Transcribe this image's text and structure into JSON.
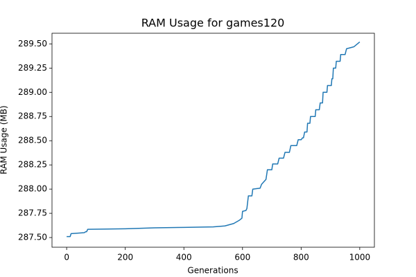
{
  "chart_data": {
    "type": "line",
    "title": "RAM Usage for games120",
    "xlabel": "Generations",
    "ylabel": "RAM Usage (MB)",
    "x": [
      0,
      12,
      15,
      60,
      65,
      68,
      72,
      200,
      300,
      400,
      500,
      540,
      570,
      590,
      598,
      600,
      612,
      615,
      620,
      632,
      635,
      660,
      665,
      680,
      685,
      700,
      703,
      720,
      725,
      740,
      745,
      760,
      765,
      785,
      790,
      800,
      805,
      808,
      812,
      820,
      822,
      830,
      832,
      848,
      850,
      862,
      865,
      873,
      875,
      888,
      890,
      903,
      905,
      908,
      910,
      918,
      920,
      933,
      935,
      950,
      955,
      980,
      1000
    ],
    "values": [
      287.51,
      287.51,
      287.54,
      287.55,
      287.56,
      287.56,
      287.585,
      287.59,
      287.6,
      287.605,
      287.61,
      287.62,
      287.645,
      287.68,
      287.7,
      287.77,
      287.78,
      287.8,
      287.93,
      287.93,
      288.0,
      288.01,
      288.05,
      288.1,
      288.2,
      288.2,
      288.26,
      288.26,
      288.32,
      288.32,
      288.38,
      288.38,
      288.45,
      288.45,
      288.51,
      288.51,
      288.53,
      288.53,
      288.59,
      288.59,
      288.68,
      288.68,
      288.75,
      288.75,
      288.82,
      288.82,
      288.89,
      288.89,
      289.0,
      289.0,
      289.07,
      289.07,
      289.14,
      289.14,
      289.25,
      289.25,
      289.32,
      289.32,
      289.39,
      289.39,
      289.45,
      289.47,
      289.52
    ],
    "color": "#1f77b4",
    "xlim": [
      -50,
      1050
    ],
    "xticks": [
      0,
      200,
      400,
      600,
      800,
      1000
    ],
    "ylim": [
      287.4,
      289.61
    ],
    "yticks": [
      {
        "value": 287.5,
        "label": "287.50"
      },
      {
        "value": 287.75,
        "label": "287.75"
      },
      {
        "value": 288,
        "label": "288.00"
      },
      {
        "value": 288.25,
        "label": "288.25"
      },
      {
        "value": 288.5,
        "label": "288.50"
      },
      {
        "value": 288.75,
        "label": "288.75"
      },
      {
        "value": 289,
        "label": "289.00"
      },
      {
        "value": 289.25,
        "label": "289.25"
      },
      {
        "value": 289.5,
        "label": "289.50"
      }
    ]
  }
}
